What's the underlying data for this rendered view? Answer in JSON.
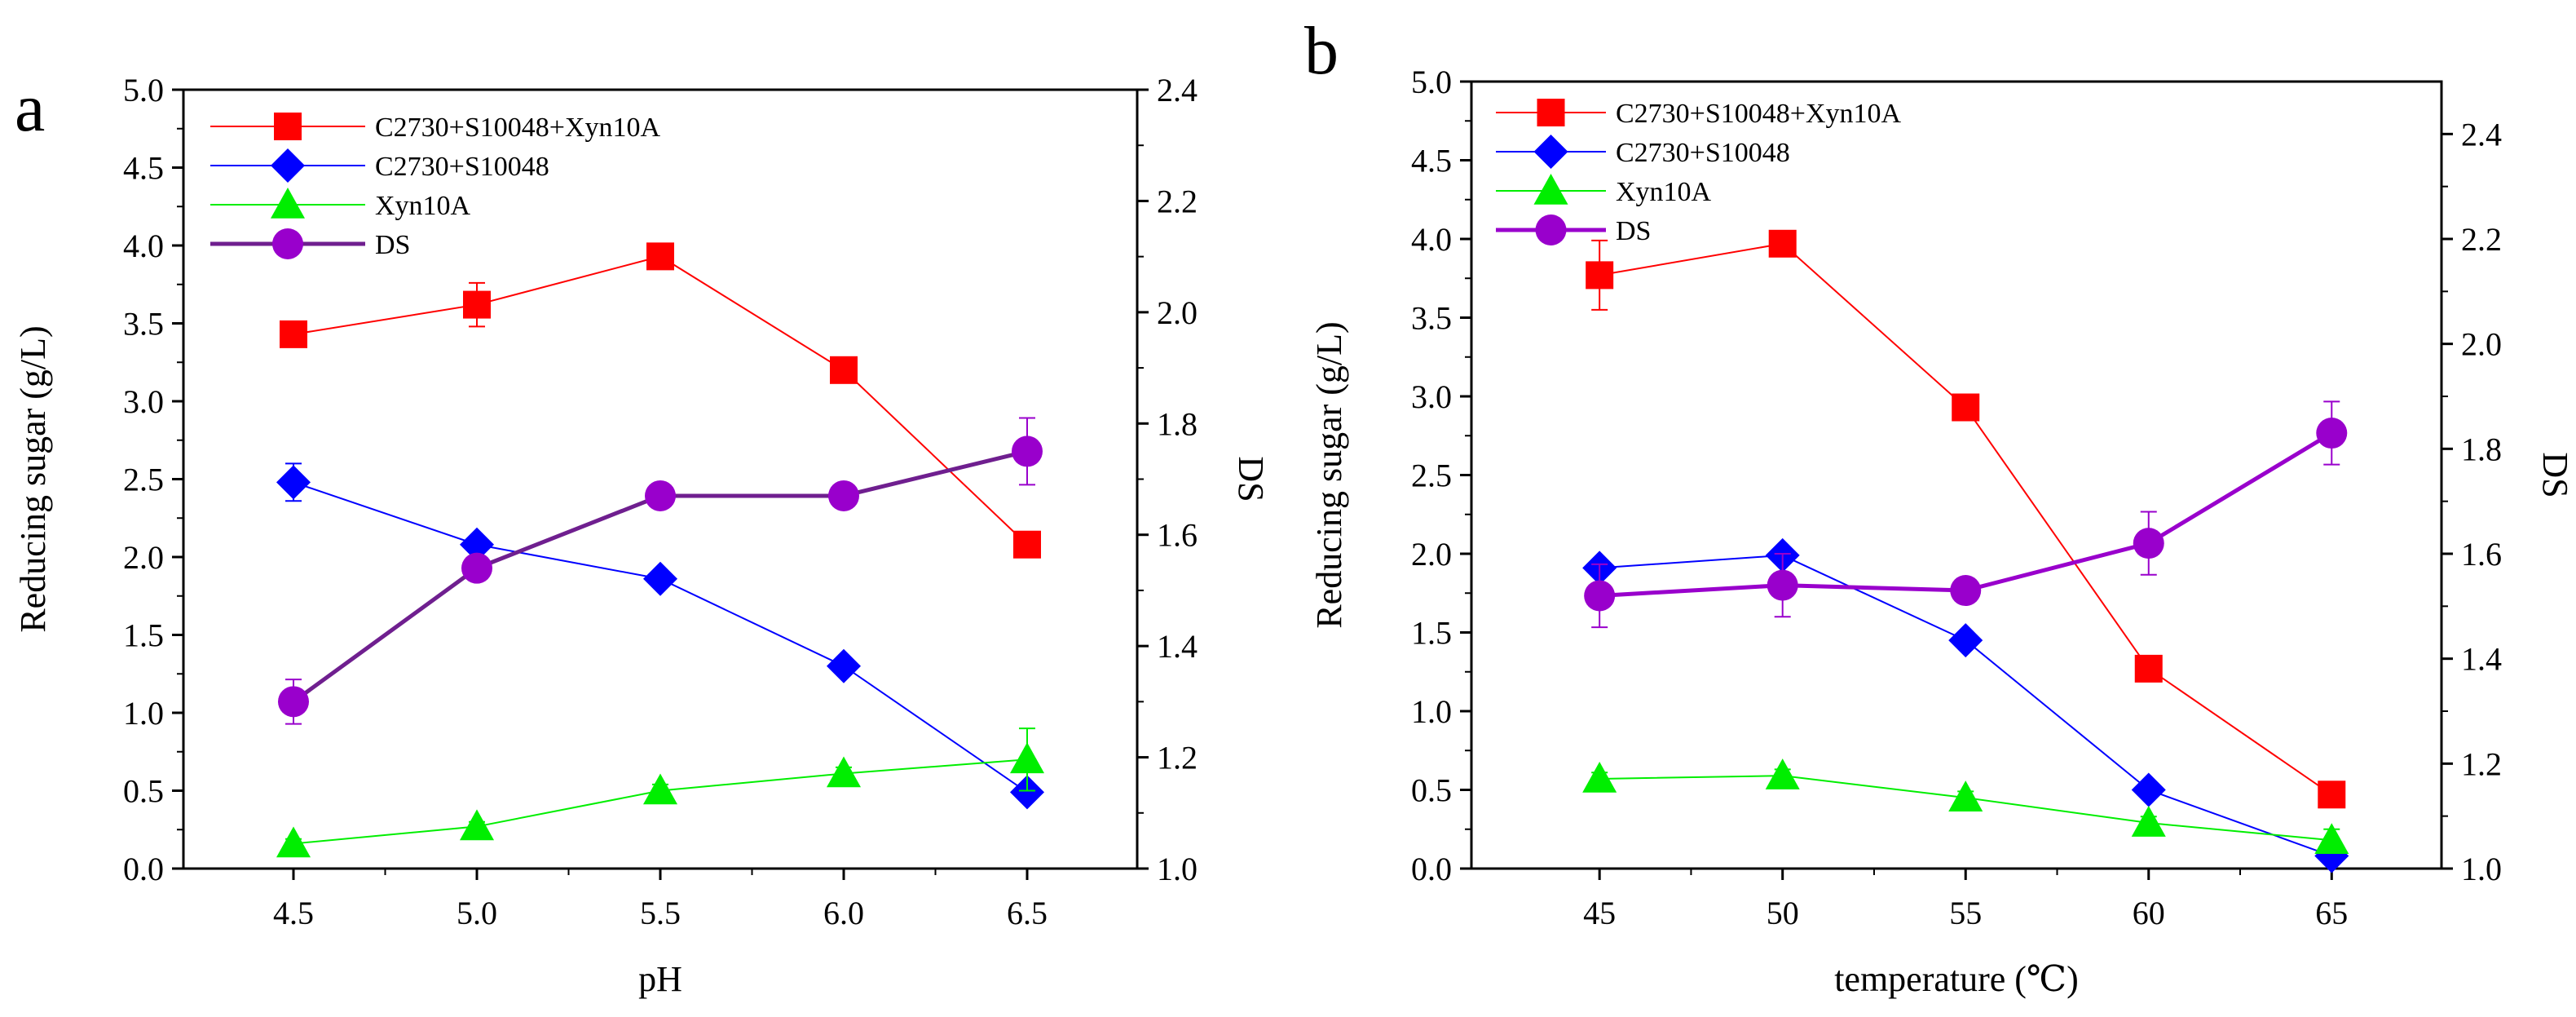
{
  "chart_data": [
    {
      "panel": "a",
      "type": "line",
      "xlabel": "pH",
      "ylabel": "Reducing sugar (g/L)",
      "y2label": "DS",
      "x": [
        4.5,
        5.0,
        5.5,
        6.0,
        6.5
      ],
      "xticks": [
        "4.5",
        "5.0",
        "5.5",
        "6.0",
        "6.5"
      ],
      "ylim": [
        0,
        5
      ],
      "yticks": [
        "0.0",
        "0.5",
        "1.0",
        "1.5",
        "2.0",
        "2.5",
        "3.0",
        "3.5",
        "4.0",
        "4.5",
        "5.0"
      ],
      "y2lim": [
        1.0,
        2.4
      ],
      "y2ticks": [
        "1.0",
        "1.2",
        "1.4",
        "1.6",
        "1.8",
        "2.0",
        "2.2",
        "2.4"
      ],
      "legend_position": "top-left",
      "series": [
        {
          "name": "C2730+S10048+Xyn10A",
          "axis": "left",
          "marker": "square",
          "color": "#ff0000",
          "values": [
            3.43,
            3.62,
            3.93,
            3.2,
            2.08
          ],
          "errors": [
            0.05,
            0.14,
            0.05,
            0.04,
            0.04
          ]
        },
        {
          "name": "C2730+S10048",
          "axis": "left",
          "marker": "diamond",
          "color": "#0000ff",
          "values": [
            2.48,
            2.08,
            1.86,
            1.3,
            0.49
          ],
          "errors": [
            0.12,
            0.05,
            0.04,
            0.04,
            0.05
          ]
        },
        {
          "name": "Xyn10A",
          "axis": "left",
          "marker": "triangle",
          "color": "#00ee00",
          "values": [
            0.16,
            0.27,
            0.5,
            0.61,
            0.7
          ],
          "errors": [
            0.03,
            0.03,
            0.04,
            0.04,
            0.2
          ]
        },
        {
          "name": "DS",
          "axis": "right",
          "marker": "circle",
          "color": "#9900cc",
          "line_color": "#6f1f8f",
          "values": [
            1.3,
            1.54,
            1.67,
            1.67,
            1.75
          ],
          "errors": [
            0.04,
            0.02,
            0.01,
            0.01,
            0.06
          ]
        }
      ]
    },
    {
      "panel": "b",
      "type": "line",
      "xlabel": "temperature (℃)",
      "ylabel": "Reducing sugar (g/L)",
      "y2label": "DS",
      "x": [
        45,
        50,
        55,
        60,
        65
      ],
      "xticks": [
        "45",
        "50",
        "55",
        "60",
        "65"
      ],
      "ylim": [
        0,
        5
      ],
      "yticks": [
        "0.0",
        "0.5",
        "1.0",
        "1.5",
        "2.0",
        "2.5",
        "3.0",
        "3.5",
        "4.0",
        "4.5",
        "5.0"
      ],
      "y2lim": [
        1.0,
        2.5
      ],
      "y2ticks": [
        "1.0",
        "1.2",
        "1.4",
        "1.6",
        "1.8",
        "2.0",
        "2.2",
        "2.4"
      ],
      "legend_position": "top-left",
      "series": [
        {
          "name": "C2730+S10048+Xyn10A",
          "axis": "left",
          "marker": "square",
          "color": "#ff0000",
          "values": [
            3.77,
            3.97,
            2.93,
            1.27,
            0.47
          ],
          "errors": [
            0.22,
            0.05,
            0.05,
            0.04,
            0.05
          ]
        },
        {
          "name": "C2730+S10048",
          "axis": "left",
          "marker": "diamond",
          "color": "#0000ff",
          "values": [
            1.91,
            1.99,
            1.45,
            0.5,
            0.08
          ],
          "errors": [
            0.05,
            0.05,
            0.04,
            0.04,
            0.04
          ]
        },
        {
          "name": "Xyn10A",
          "axis": "left",
          "marker": "triangle",
          "color": "#00ee00",
          "values": [
            0.57,
            0.59,
            0.45,
            0.29,
            0.18
          ],
          "errors": [
            0.04,
            0.04,
            0.04,
            0.04,
            0.07
          ]
        },
        {
          "name": "DS",
          "axis": "right",
          "marker": "circle",
          "color": "#9900cc",
          "line_color": "#9900cc",
          "values": [
            1.52,
            1.54,
            1.53,
            1.62,
            1.83
          ],
          "errors": [
            0.06,
            0.06,
            0.01,
            0.06,
            0.06
          ]
        }
      ]
    }
  ]
}
